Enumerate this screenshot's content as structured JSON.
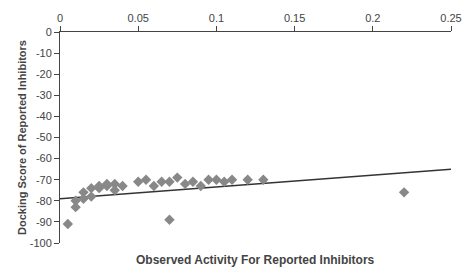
{
  "chart_data": {
    "type": "scatter",
    "xlabel": "Observed Activity For Reported Inhibitors",
    "ylabel": "Docking Score of Reported Inhibitors",
    "series": [
      {
        "type": "scatter",
        "marker": "diamond",
        "color": "#888888",
        "x": [
          0.005,
          0.01,
          0.01,
          0.015,
          0.015,
          0.02,
          0.02,
          0.025,
          0.025,
          0.03,
          0.03,
          0.035,
          0.035,
          0.04,
          0.05,
          0.055,
          0.06,
          0.065,
          0.07,
          0.075,
          0.08,
          0.085,
          0.09,
          0.095,
          0.1,
          0.105,
          0.11,
          0.12,
          0.13,
          0.07,
          0.22
        ],
        "values": [
          -91,
          -80,
          -83,
          -79,
          -76,
          -78,
          -74,
          -74,
          -73,
          -73,
          -72,
          -72,
          -75,
          -73,
          -71,
          -70,
          -73,
          -71,
          -71,
          -69,
          -72,
          -71,
          -73,
          -70,
          -70,
          -71,
          -70,
          -70,
          -70,
          -89,
          -76
        ]
      },
      {
        "type": "line",
        "color": "#333333",
        "x": [
          0,
          0.25
        ],
        "values": [
          -79,
          -65
        ]
      }
    ],
    "xlim": [
      0,
      0.25
    ],
    "ylim": [
      -100,
      0
    ],
    "xticks": [
      0,
      0.05,
      0.1,
      0.15,
      0.2,
      0.25
    ],
    "yticks": [
      0,
      -10,
      -20,
      -30,
      -40,
      -50,
      -60,
      -70,
      -80,
      -90,
      -100
    ],
    "grid": false
  }
}
